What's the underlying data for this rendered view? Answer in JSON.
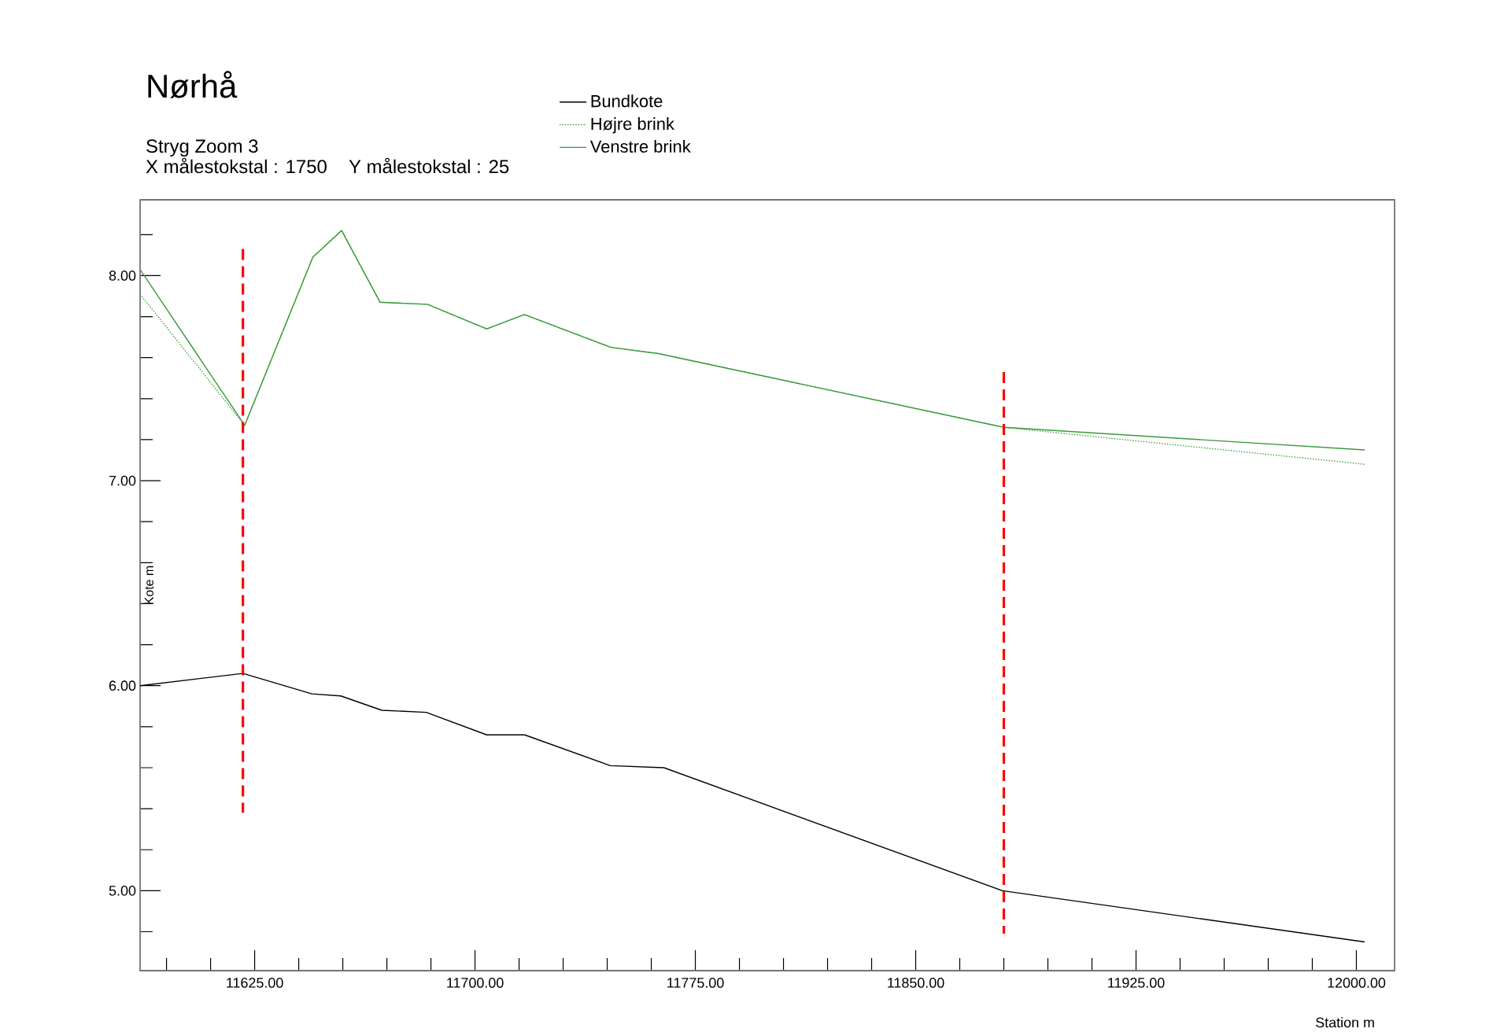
{
  "chart_data": {
    "type": "line",
    "title": "Nørhå",
    "subtitle": "Stryg Zoom 3",
    "annotations": [
      "X målestokstal : 1750",
      "Y målestokstal : 25"
    ],
    "xlabel": "Station m",
    "ylabel": "Kote m",
    "xlim": [
      11586,
      12013
    ],
    "ylim": [
      4.61,
      8.37
    ],
    "xticks": [
      {
        "value": 11595,
        "label": null
      },
      {
        "value": 11610,
        "label": null
      },
      {
        "value": 11625,
        "label": "11625.00"
      },
      {
        "value": 11640,
        "label": null
      },
      {
        "value": 11655,
        "label": null
      },
      {
        "value": 11670,
        "label": null
      },
      {
        "value": 11685,
        "label": null
      },
      {
        "value": 11700,
        "label": "11700.00"
      },
      {
        "value": 11715,
        "label": null
      },
      {
        "value": 11730,
        "label": null
      },
      {
        "value": 11745,
        "label": null
      },
      {
        "value": 11760,
        "label": null
      },
      {
        "value": 11775,
        "label": "11775.00"
      },
      {
        "value": 11790,
        "label": null
      },
      {
        "value": 11805,
        "label": null
      },
      {
        "value": 11820,
        "label": null
      },
      {
        "value": 11835,
        "label": null
      },
      {
        "value": 11850,
        "label": "11850.00"
      },
      {
        "value": 11865,
        "label": null
      },
      {
        "value": 11880,
        "label": null
      },
      {
        "value": 11895,
        "label": null
      },
      {
        "value": 11910,
        "label": null
      },
      {
        "value": 11925,
        "label": "11925.00"
      },
      {
        "value": 11940,
        "label": null
      },
      {
        "value": 11955,
        "label": null
      },
      {
        "value": 11970,
        "label": null
      },
      {
        "value": 11985,
        "label": null
      },
      {
        "value": 12000,
        "label": "12000.00"
      }
    ],
    "yticks": [
      {
        "value": 4.8,
        "label": null
      },
      {
        "value": 5,
        "label": "5.00"
      },
      {
        "value": 5.2,
        "label": null
      },
      {
        "value": 5.4,
        "label": null
      },
      {
        "value": 5.6,
        "label": null
      },
      {
        "value": 5.8,
        "label": null
      },
      {
        "value": 6,
        "label": "6.00"
      },
      {
        "value": 6.2,
        "label": null
      },
      {
        "value": 6.4,
        "label": null
      },
      {
        "value": 6.6,
        "label": null
      },
      {
        "value": 6.8,
        "label": null
      },
      {
        "value": 7,
        "label": "7.00"
      },
      {
        "value": 7.2,
        "label": null
      },
      {
        "value": 7.4,
        "label": null
      },
      {
        "value": 7.6,
        "label": null
      },
      {
        "value": 7.8,
        "label": null
      },
      {
        "value": 8,
        "label": "8.00"
      },
      {
        "value": 8.2,
        "label": null
      }
    ],
    "legend": "top",
    "grid": false,
    "marker": "none",
    "series": [
      {
        "name": "Bundkote",
        "color": "#000000",
        "line_style": "solid",
        "x": [
          11586,
          11621,
          11644.5,
          11654.3,
          11668.3,
          11683.4,
          11704,
          11716.9,
          11746,
          11764.3,
          11879.5,
          12002.8
        ],
        "values": [
          6.0,
          6.06,
          5.96,
          5.95,
          5.88,
          5.87,
          5.76,
          5.76,
          5.61,
          5.6,
          5.0,
          4.75
        ]
      },
      {
        "name": "Højre brink",
        "color": "#3a9a3a",
        "line_style": "dotted",
        "x": [
          11586,
          11621.6,
          11644.8,
          11654.6,
          11667.7,
          11683.8,
          11704,
          11716.8,
          11746.3,
          11762.4,
          11880,
          12002.8
        ],
        "values": [
          7.91,
          7.27,
          8.09,
          8.22,
          7.87,
          7.86,
          7.74,
          7.81,
          7.65,
          7.62,
          7.26,
          7.08
        ]
      },
      {
        "name": "Venstre brink",
        "color": "#3a9a3a",
        "line_style": "solid",
        "x": [
          11586,
          11621.6,
          11644.8,
          11654.6,
          11667.7,
          11683.8,
          11704,
          11716.8,
          11746.3,
          11762.4,
          11880,
          12002.8
        ],
        "values": [
          8.03,
          7.27,
          8.09,
          8.22,
          7.87,
          7.86,
          7.74,
          7.81,
          7.65,
          7.62,
          7.26,
          7.15
        ]
      },
      {
        "color": "#ff0000",
        "line_style": "dashed",
        "x": [
          11621,
          11621
        ],
        "values": [
          8.13,
          5.38
        ]
      },
      {
        "color": "#ff0000",
        "line_style": "dashed",
        "x": [
          11880,
          11880
        ],
        "values": [
          7.53,
          4.79
        ]
      }
    ]
  }
}
